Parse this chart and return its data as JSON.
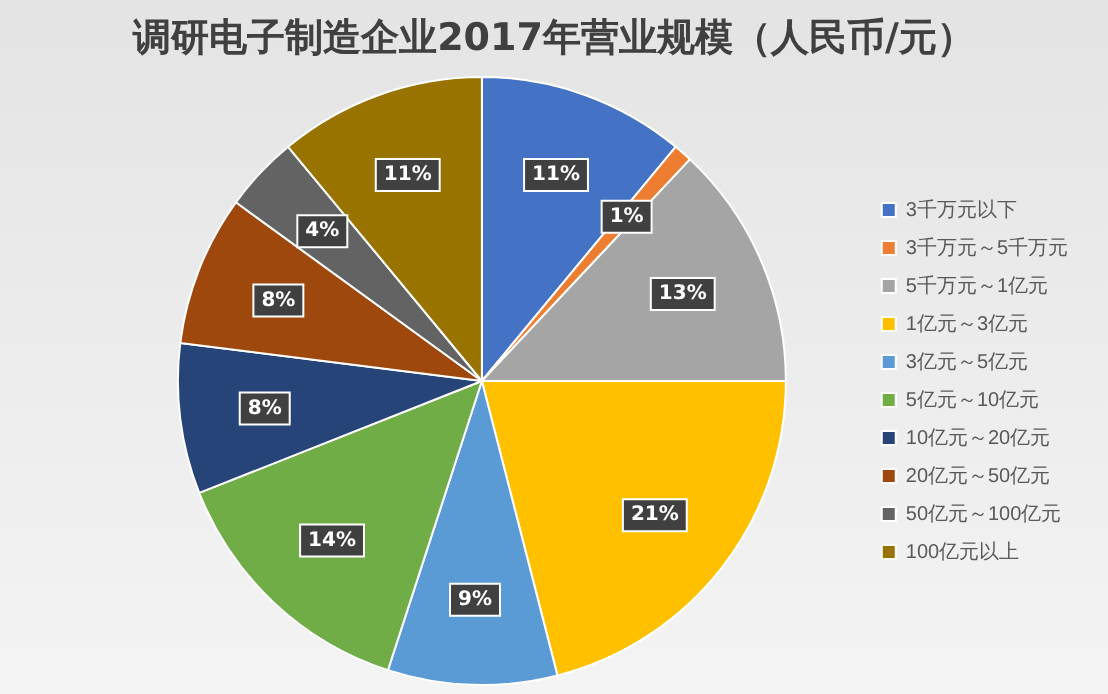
{
  "chart_data": {
    "type": "pie",
    "title": "调研电子制造企业2017年营业规模（人民币/元）",
    "categories": [
      "3千万元以下",
      "3千万元～5千万元",
      "5千万元～1亿元",
      "1亿元～3亿元",
      "3亿元～5亿元",
      "5亿元～10亿元",
      "10亿元～20亿元",
      "20亿元～50亿元",
      "50亿元～100亿元",
      "100亿元以上"
    ],
    "values": [
      11,
      1,
      13,
      21,
      9,
      14,
      8,
      8,
      4,
      11
    ],
    "value_labels": [
      "11%",
      "1%",
      "13%",
      "21%",
      "9%",
      "14%",
      "8%",
      "8%",
      "4%",
      "11%"
    ],
    "colors": [
      "#4472c4",
      "#ed7d31",
      "#a5a5a5",
      "#ffc000",
      "#5b9bd5",
      "#70ad47",
      "#264478",
      "#9e480e",
      "#636363",
      "#997300"
    ],
    "legend": "right"
  }
}
